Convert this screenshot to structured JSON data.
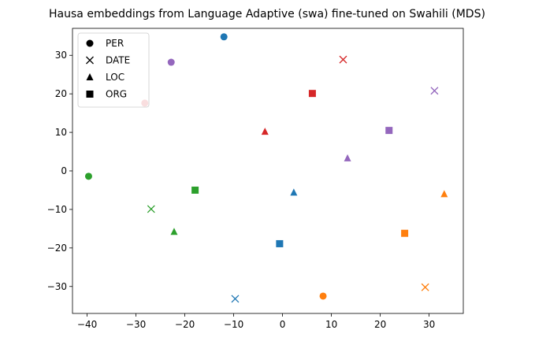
{
  "chart_data": {
    "type": "scatter",
    "title": "Hausa embeddings from Language Adaptive (swa) fine-tuned on Swahili (MDS)",
    "xlabel": "",
    "ylabel": "",
    "xlim": [
      -43,
      37
    ],
    "ylim": [
      -37,
      37
    ],
    "xticks": [
      -40,
      -30,
      -20,
      -10,
      0,
      10,
      20,
      30
    ],
    "yticks": [
      -30,
      -20,
      -10,
      0,
      10,
      20,
      30
    ],
    "grid": false,
    "legend_position": "top-left",
    "legend": [
      {
        "label": "PER",
        "marker": "circle"
      },
      {
        "label": "DATE",
        "marker": "x"
      },
      {
        "label": "LOC",
        "marker": "triangle"
      },
      {
        "label": "ORG",
        "marker": "square"
      }
    ],
    "points": [
      {
        "entity": "PER",
        "marker": "circle",
        "color": "#1f77b4",
        "x": -12.0,
        "y": 34.8
      },
      {
        "entity": "PER",
        "marker": "circle",
        "color": "#9467bd",
        "x": -22.8,
        "y": 28.2
      },
      {
        "entity": "PER",
        "marker": "circle",
        "color": "#d62728",
        "x": -28.2,
        "y": 17.6
      },
      {
        "entity": "PER",
        "marker": "circle",
        "color": "#2ca02c",
        "x": -39.7,
        "y": -1.4
      },
      {
        "entity": "PER",
        "marker": "circle",
        "color": "#ff7f0e",
        "x": 8.3,
        "y": -32.5
      },
      {
        "entity": "DATE",
        "marker": "x",
        "color": "#d62728",
        "x": 12.4,
        "y": 28.9
      },
      {
        "entity": "DATE",
        "marker": "x",
        "color": "#9467bd",
        "x": 31.1,
        "y": 20.8
      },
      {
        "entity": "DATE",
        "marker": "x",
        "color": "#2ca02c",
        "x": -26.9,
        "y": -9.9
      },
      {
        "entity": "DATE",
        "marker": "x",
        "color": "#1f77b4",
        "x": -9.7,
        "y": -33.2
      },
      {
        "entity": "DATE",
        "marker": "x",
        "color": "#ff7f0e",
        "x": 29.2,
        "y": -30.2
      },
      {
        "entity": "LOC",
        "marker": "triangle",
        "color": "#d62728",
        "x": -3.6,
        "y": 10.2
      },
      {
        "entity": "LOC",
        "marker": "triangle",
        "color": "#9467bd",
        "x": 13.3,
        "y": 3.3
      },
      {
        "entity": "LOC",
        "marker": "triangle",
        "color": "#1f77b4",
        "x": 2.3,
        "y": -5.6
      },
      {
        "entity": "LOC",
        "marker": "triangle",
        "color": "#ff7f0e",
        "x": 33.1,
        "y": -6.0
      },
      {
        "entity": "LOC",
        "marker": "triangle",
        "color": "#2ca02c",
        "x": -22.2,
        "y": -15.8
      },
      {
        "entity": "ORG",
        "marker": "square",
        "color": "#d62728",
        "x": 6.1,
        "y": 20.1
      },
      {
        "entity": "ORG",
        "marker": "square",
        "color": "#9467bd",
        "x": 21.8,
        "y": 10.5
      },
      {
        "entity": "ORG",
        "marker": "square",
        "color": "#2ca02c",
        "x": -17.9,
        "y": -5.0
      },
      {
        "entity": "ORG",
        "marker": "square",
        "color": "#ff7f0e",
        "x": 25.0,
        "y": -16.2
      },
      {
        "entity": "ORG",
        "marker": "square",
        "color": "#1f77b4",
        "x": -0.6,
        "y": -18.9
      }
    ]
  }
}
